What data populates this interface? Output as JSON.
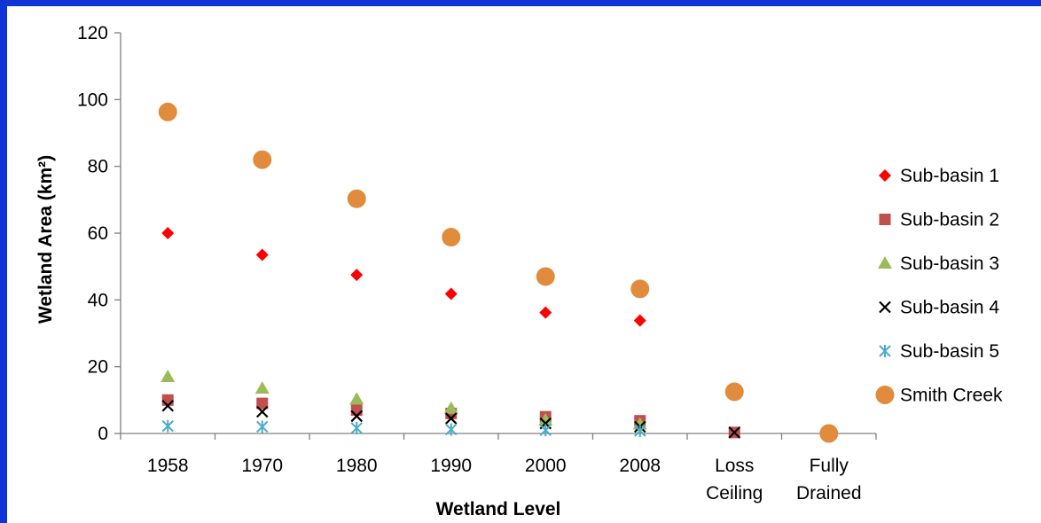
{
  "chart_data": {
    "type": "scatter",
    "categories": [
      "1958",
      "1970",
      "1980",
      "1990",
      "2000",
      "2008",
      "Loss Ceiling",
      "Fully Drained"
    ],
    "category_lines": [
      [
        "1958"
      ],
      [
        "1970"
      ],
      [
        "1980"
      ],
      [
        "1990"
      ],
      [
        "2000"
      ],
      [
        "2008"
      ],
      [
        "Loss",
        "Ceiling"
      ],
      [
        "Fully",
        "Drained"
      ]
    ],
    "xlabel": "Wetland Level",
    "ylabel": "Wetland Area (km²)",
    "ylim": [
      0,
      120
    ],
    "yticks": [
      0,
      20,
      40,
      60,
      80,
      100,
      120
    ],
    "grid": false,
    "legend_position": "right",
    "series": [
      {
        "name": "Sub-basin 1",
        "marker": "diamond",
        "color": "#ff0000",
        "values": [
          60,
          53.5,
          47.5,
          41.8,
          36.2,
          33.8,
          null,
          null
        ]
      },
      {
        "name": "Sub-basin 2",
        "marker": "square",
        "color": "#c0504d",
        "values": [
          10,
          9,
          7,
          6,
          5,
          3.8,
          0.3,
          null
        ]
      },
      {
        "name": "Sub-basin 3",
        "marker": "triangle",
        "color": "#9bbb59",
        "values": [
          17,
          13.5,
          10.3,
          7.5,
          4,
          2.8,
          null,
          null
        ]
      },
      {
        "name": "Sub-basin 4",
        "marker": "x",
        "color": "#000000",
        "values": [
          8.3,
          6.5,
          5.2,
          4.5,
          3,
          2,
          0.3,
          null
        ]
      },
      {
        "name": "Sub-basin 5",
        "marker": "star",
        "color": "#4bacc6",
        "values": [
          2.2,
          2,
          1.6,
          1.2,
          1,
          0.8,
          null,
          null
        ]
      },
      {
        "name": "Smith Creek",
        "marker": "circle",
        "color": "#e08c3c",
        "values": [
          96.3,
          82,
          70.3,
          58.8,
          47,
          43.3,
          12.5,
          0
        ]
      }
    ]
  }
}
